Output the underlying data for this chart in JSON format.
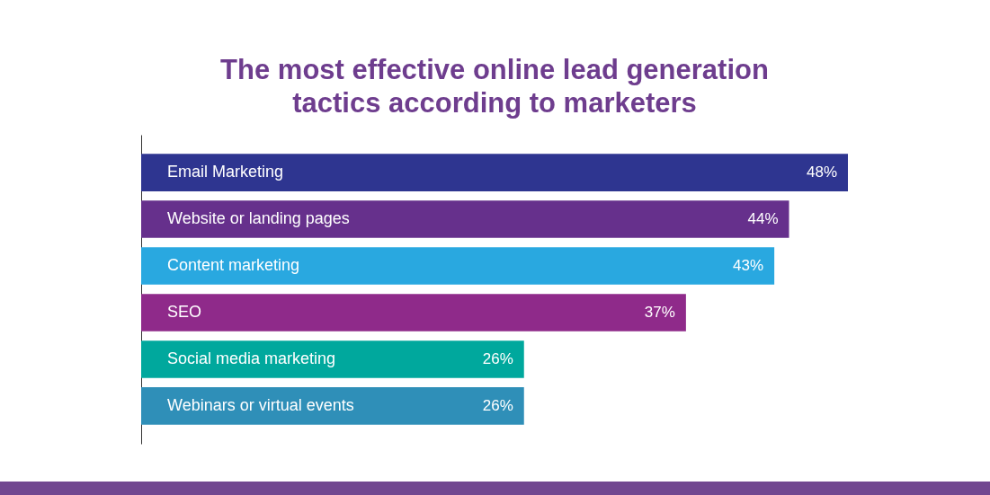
{
  "chart_data": {
    "type": "bar",
    "orientation": "horizontal",
    "title": "The most effective online lead generation tactics according to marketers",
    "categories": [
      "Email Marketing",
      "Website or landing pages",
      "Content marketing",
      "SEO",
      "Social media marketing",
      "Webinars or virtual events"
    ],
    "values": [
      48,
      44,
      43,
      37,
      26,
      26
    ],
    "colors": [
      "#2e3590",
      "#66308c",
      "#29a8e0",
      "#8f2a8a",
      "#00a89d",
      "#2f8fb8"
    ],
    "value_labels": [
      "48%",
      "44%",
      "43%",
      "37%",
      "26%",
      "26%"
    ]
  }
}
